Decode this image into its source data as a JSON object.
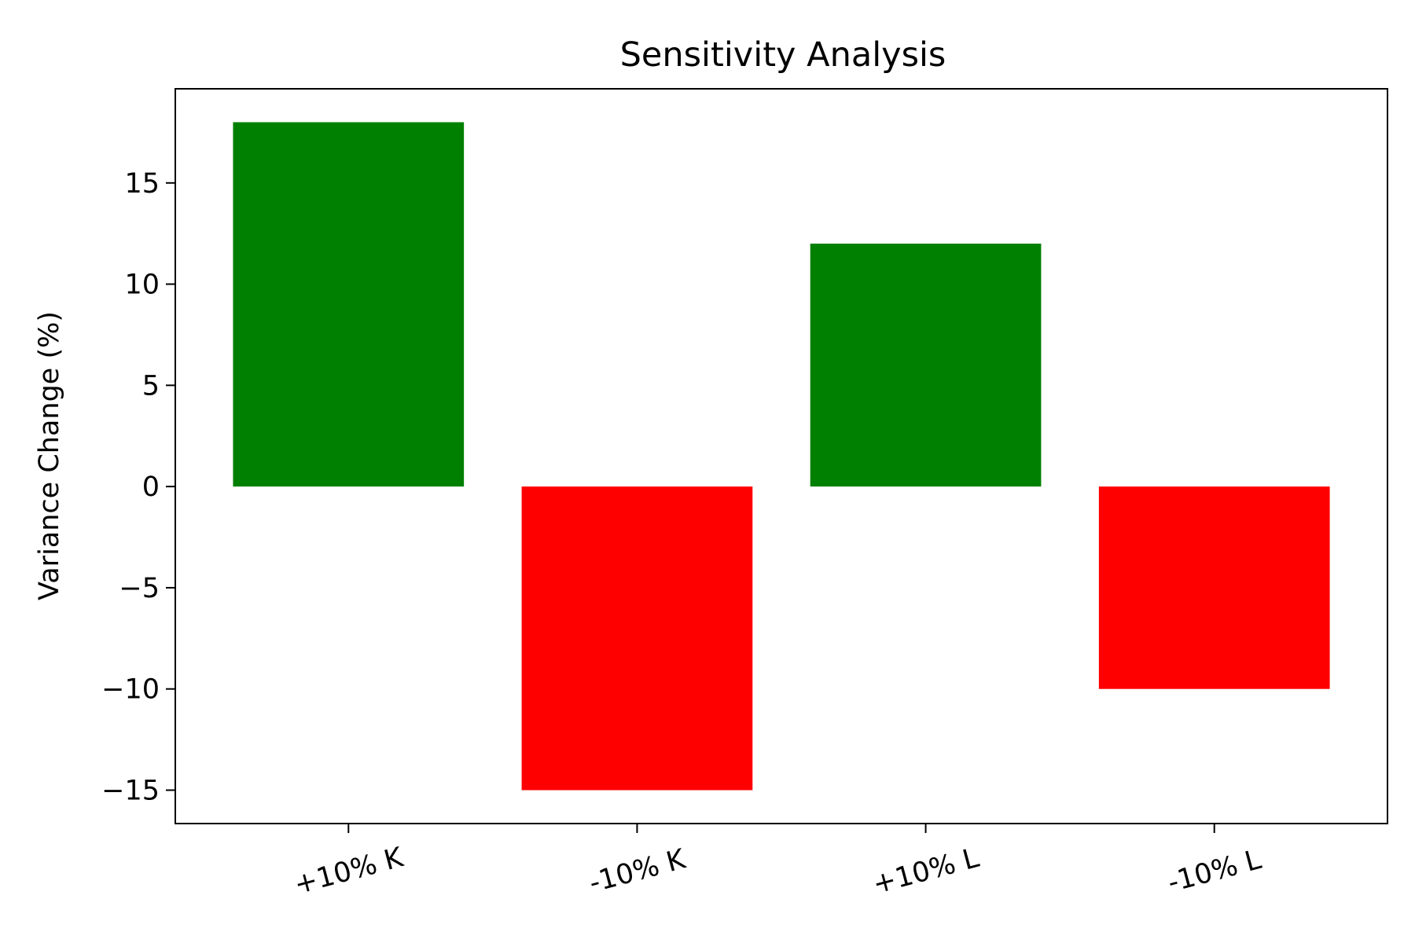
{
  "chart_data": {
    "type": "bar",
    "title": "Sensitivity Analysis",
    "xlabel": "",
    "ylabel": "Variance Change (%)",
    "categories": [
      "+10% K",
      "-10% K",
      "+10% L",
      "-10% L"
    ],
    "values": [
      18,
      -15,
      12,
      -10
    ],
    "bar_colors": [
      "#008000",
      "#ff0000",
      "#008000",
      "#ff0000"
    ],
    "ylim": [
      -16.65,
      19.65
    ],
    "yticks": [
      15,
      10,
      5,
      0,
      -5,
      -10,
      -15
    ],
    "ytick_labels": [
      "15",
      "10",
      "5",
      "0",
      "−5",
      "−10",
      "−15"
    ],
    "grid": false,
    "legend": "none"
  }
}
